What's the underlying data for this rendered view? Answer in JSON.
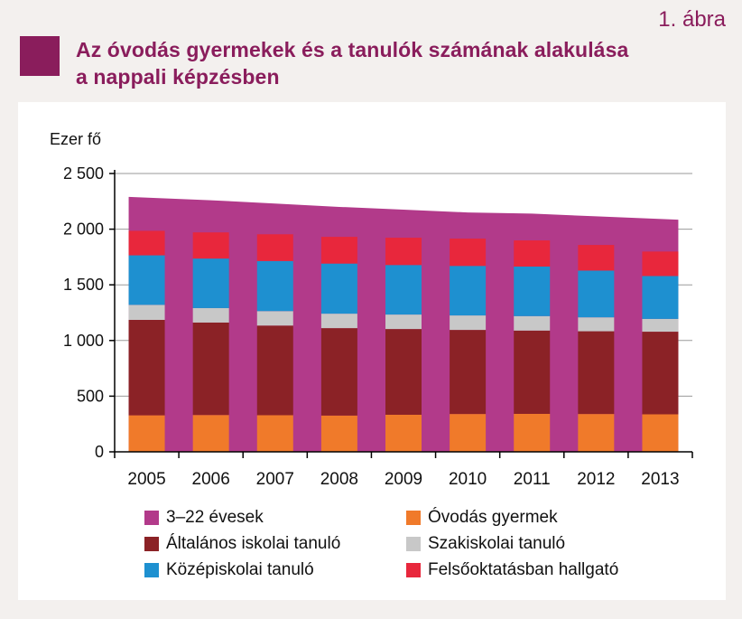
{
  "figure_label": "1. ábra",
  "title": "Az óvodás gyermekek és a tanulók számának alakulása\na nappali képzésben",
  "colors": {
    "title": "#8a1d5c",
    "age_group": "#b23a8a",
    "kindergarten": "#f07a2a",
    "primary": "#8b2226",
    "vocational": "#c8c8c8",
    "secondary": "#1e90d0",
    "higher": "#e8273c"
  },
  "chart_data": {
    "type": "bar",
    "stacked": true,
    "ylabel": "Ezer fő",
    "ylim": [
      0,
      2500
    ],
    "yticks": [
      0,
      500,
      1000,
      1500,
      2000,
      2500
    ],
    "ytick_labels": [
      "0",
      "500",
      "1 000",
      "1 500",
      "2 000",
      "2 500"
    ],
    "grid": true,
    "legend_position": "bottom",
    "categories": [
      "2005",
      "2006",
      "2007",
      "2008",
      "2009",
      "2010",
      "2011",
      "2012",
      "2013"
    ],
    "area": {
      "name": "3–22 évesek",
      "values": [
        2290,
        2260,
        2230,
        2200,
        2175,
        2150,
        2140,
        2115,
        2085
      ]
    },
    "series": [
      {
        "name": "Óvodás gyermek",
        "color_key": "kindergarten",
        "values": [
          328,
          331,
          329,
          326,
          333,
          340,
          341,
          340,
          337
        ]
      },
      {
        "name": "Általános iskolai tanuló",
        "color_key": "primary",
        "values": [
          857,
          830,
          805,
          785,
          770,
          755,
          748,
          743,
          742
        ]
      },
      {
        "name": "Szakiskolai tanuló",
        "color_key": "vocational",
        "values": [
          135,
          130,
          130,
          130,
          130,
          130,
          130,
          125,
          115
        ]
      },
      {
        "name": "Középiskolai tanuló",
        "color_key": "secondary",
        "values": [
          445,
          445,
          450,
          450,
          445,
          445,
          445,
          420,
          385
        ]
      },
      {
        "name": "Felsőoktatásban hallgató",
        "color_key": "higher",
        "values": [
          220,
          235,
          240,
          240,
          245,
          245,
          235,
          230,
          220
        ]
      }
    ],
    "legend": [
      {
        "label": "3–22 évesek",
        "color_key": "age_group"
      },
      {
        "label": "Óvodás gyermek",
        "color_key": "kindergarten"
      },
      {
        "label": "Általános iskolai tanuló",
        "color_key": "primary"
      },
      {
        "label": "Szakiskolai tanuló",
        "color_key": "vocational"
      },
      {
        "label": "Középiskolai tanuló",
        "color_key": "secondary"
      },
      {
        "label": "Felsőoktatásban hallgató",
        "color_key": "higher"
      }
    ]
  }
}
